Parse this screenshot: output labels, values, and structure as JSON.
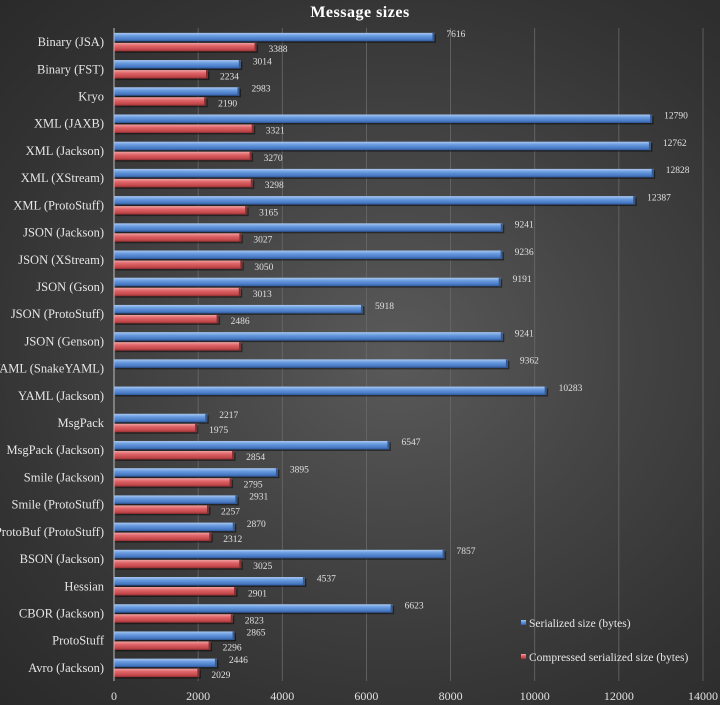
{
  "chart_data": {
    "type": "bar",
    "orientation": "horizontal",
    "title": "Message sizes",
    "xlabel": "",
    "ylabel": "",
    "xlim": [
      0,
      14000
    ],
    "xticks": [
      0,
      2000,
      4000,
      6000,
      8000,
      10000,
      12000,
      14000
    ],
    "grid": true,
    "legend_position": "bottom-right",
    "categories": [
      "Binary (JSA)",
      "Binary (FST)",
      "Kryo",
      "XML (JAXB)",
      "XML (Jackson)",
      "XML (XStream)",
      "XML (ProtoStuff)",
      "JSON (Jackson)",
      "JSON (XStream)",
      "JSON (Gson)",
      "JSON (ProtoStuff)",
      "JSON (Genson)",
      "YAML (SnakeYAML)",
      "YAML (Jackson)",
      "MsgPack",
      "MsgPack (Jackson)",
      "Smile (Jackson)",
      "Smile (ProtoStuff)",
      "ProtoBuf (ProtoStuff)",
      "BSON (Jackson)",
      "Hessian",
      "CBOR (Jackson)",
      "ProtoStuff",
      "Avro (Jackson)"
    ],
    "series": [
      {
        "name": "Serialized size (bytes)",
        "color": "#5b8fd6",
        "values": [
          7616,
          3014,
          2983,
          12790,
          12762,
          12828,
          12387,
          9241,
          9236,
          9191,
          5918,
          9241,
          9362,
          10283,
          2217,
          6547,
          3895,
          2931,
          2870,
          7857,
          4537,
          6623,
          2865,
          2446
        ],
        "labels": [
          "7616",
          "3014",
          "2983",
          "12790",
          "12762",
          "12828",
          "12387",
          "9241",
          "9236",
          "9191",
          "5918",
          "9241",
          "9362",
          "10283",
          "2217",
          "6547",
          "3895",
          "2931",
          "2870",
          "7857",
          "4537",
          "6623",
          "2865",
          "2446"
        ]
      },
      {
        "name": "Compressed serialized size (bytes)",
        "color": "#d9575b",
        "values": [
          3388,
          2234,
          2190,
          3321,
          3270,
          3298,
          3165,
          3027,
          3050,
          3013,
          2486,
          3020,
          null,
          null,
          1975,
          2854,
          2795,
          2257,
          2312,
          3025,
          2901,
          2823,
          2296,
          2029
        ],
        "labels": [
          "3388",
          "2234",
          "2190",
          "3321",
          "3270",
          "3298",
          "3165",
          "3027",
          "3050",
          "3013",
          "2486",
          "",
          "",
          "",
          "1975",
          "2854",
          "2795",
          "2257",
          "2312",
          "3025",
          "2901",
          "2823",
          "2296",
          "2029"
        ]
      }
    ]
  }
}
